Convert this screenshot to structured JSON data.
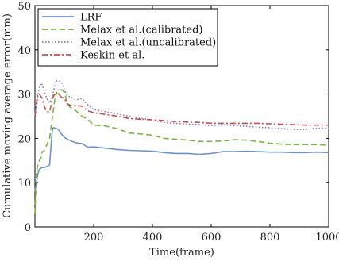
{
  "chart_data": {
    "type": "line",
    "title": "",
    "xlabel": "Time(frame)",
    "ylabel": "Cumulative moving average error(mm)",
    "xlim": [
      0,
      1000
    ],
    "ylim": [
      0,
      50
    ],
    "xticks": [
      200,
      400,
      600,
      800,
      1000
    ],
    "yticks": [
      0,
      10,
      20,
      30,
      40,
      50
    ],
    "grid": false,
    "legend_position": "top-left",
    "series": [
      {
        "name": "LRF",
        "color": "#6f93c9",
        "dash": "solid",
        "x": [
          0,
          5,
          10,
          15,
          20,
          25,
          30,
          40,
          50,
          55,
          60,
          65,
          70,
          80,
          90,
          100,
          120,
          140,
          160,
          180,
          200,
          240,
          280,
          320,
          360,
          400,
          440,
          480,
          520,
          560,
          600,
          640,
          680,
          720,
          760,
          800,
          840,
          880,
          920,
          960,
          1000
        ],
        "y": [
          8,
          10,
          12,
          13,
          13.2,
          13.4,
          13.4,
          13.6,
          14,
          18.5,
          22.3,
          22.4,
          22.3,
          22,
          21,
          20.2,
          19.5,
          19,
          18.8,
          18,
          18.1,
          17.8,
          17.5,
          17.3,
          17.2,
          17.1,
          16.8,
          16.6,
          16.6,
          16.4,
          16.6,
          17.0,
          17.0,
          17.1,
          17.0,
          16.9,
          16.9,
          16.8,
          16.8,
          16.9,
          16.8
        ]
      },
      {
        "name": "Melax et al.(calibrated)",
        "color": "#7cb342",
        "dash": "dash",
        "x": [
          0,
          5,
          10,
          15,
          20,
          25,
          30,
          40,
          50,
          60,
          70,
          80,
          90,
          100,
          110,
          120,
          140,
          160,
          180,
          200,
          240,
          280,
          320,
          360,
          400,
          440,
          480,
          520,
          560,
          600,
          640,
          680,
          720,
          760,
          800,
          840,
          880,
          920,
          960,
          1000
        ],
        "y": [
          3,
          12,
          14,
          15,
          15.5,
          17,
          17,
          18.5,
          20,
          25,
          30,
          30,
          31,
          30.5,
          28,
          27,
          26.2,
          25,
          24.3,
          23,
          22.8,
          22.2,
          21.2,
          21,
          20.7,
          20,
          19.8,
          19.6,
          19.3,
          19.3,
          19.4,
          19.7,
          19.6,
          19.3,
          18.9,
          18.7,
          18.6,
          18.6,
          18.6,
          18.4
        ]
      },
      {
        "name": "Melax et al.(uncalibrated)",
        "color": "#8a76b5",
        "dash": "dot",
        "x": [
          0,
          5,
          10,
          15,
          20,
          25,
          30,
          40,
          50,
          60,
          70,
          80,
          90,
          100,
          110,
          120,
          140,
          160,
          180,
          200,
          240,
          280,
          320,
          360,
          400,
          440,
          480,
          520,
          560,
          600,
          640,
          680,
          720,
          760,
          800,
          840,
          880,
          920,
          960,
          1000
        ],
        "y": [
          25,
          27,
          29.5,
          31.5,
          32.5,
          32,
          31,
          29,
          28,
          29.5,
          33,
          33,
          32.8,
          31,
          29.6,
          29.4,
          28.7,
          29,
          27.6,
          26.5,
          26,
          25.5,
          25,
          24.5,
          24.2,
          23.6,
          23.4,
          23.2,
          23.1,
          22.9,
          23.1,
          22.9,
          22.7,
          22.5,
          22.4,
          22.2,
          22.0,
          22.0,
          22.3,
          22.3
        ]
      },
      {
        "name": "Keskin et al.",
        "color": "#c0504d",
        "dash": "dashdot",
        "x": [
          0,
          5,
          10,
          15,
          20,
          25,
          30,
          40,
          50,
          60,
          70,
          80,
          90,
          100,
          110,
          120,
          140,
          160,
          180,
          200,
          240,
          280,
          320,
          360,
          400,
          440,
          480,
          520,
          560,
          600,
          640,
          680,
          720,
          760,
          800,
          840,
          880,
          920,
          960,
          1000
        ],
        "y": [
          25,
          28,
          30,
          30,
          29.5,
          29,
          27.5,
          26,
          26,
          29,
          30.5,
          30,
          29.3,
          29,
          27.8,
          27.5,
          27.4,
          27.3,
          26.2,
          25.8,
          25.4,
          25,
          24.5,
          24.3,
          24.2,
          24.0,
          23.8,
          23.7,
          23.6,
          23.4,
          23.4,
          23.4,
          23.4,
          23.4,
          23.3,
          23.2,
          23.1,
          23.0,
          23.0,
          23.0
        ]
      }
    ]
  }
}
